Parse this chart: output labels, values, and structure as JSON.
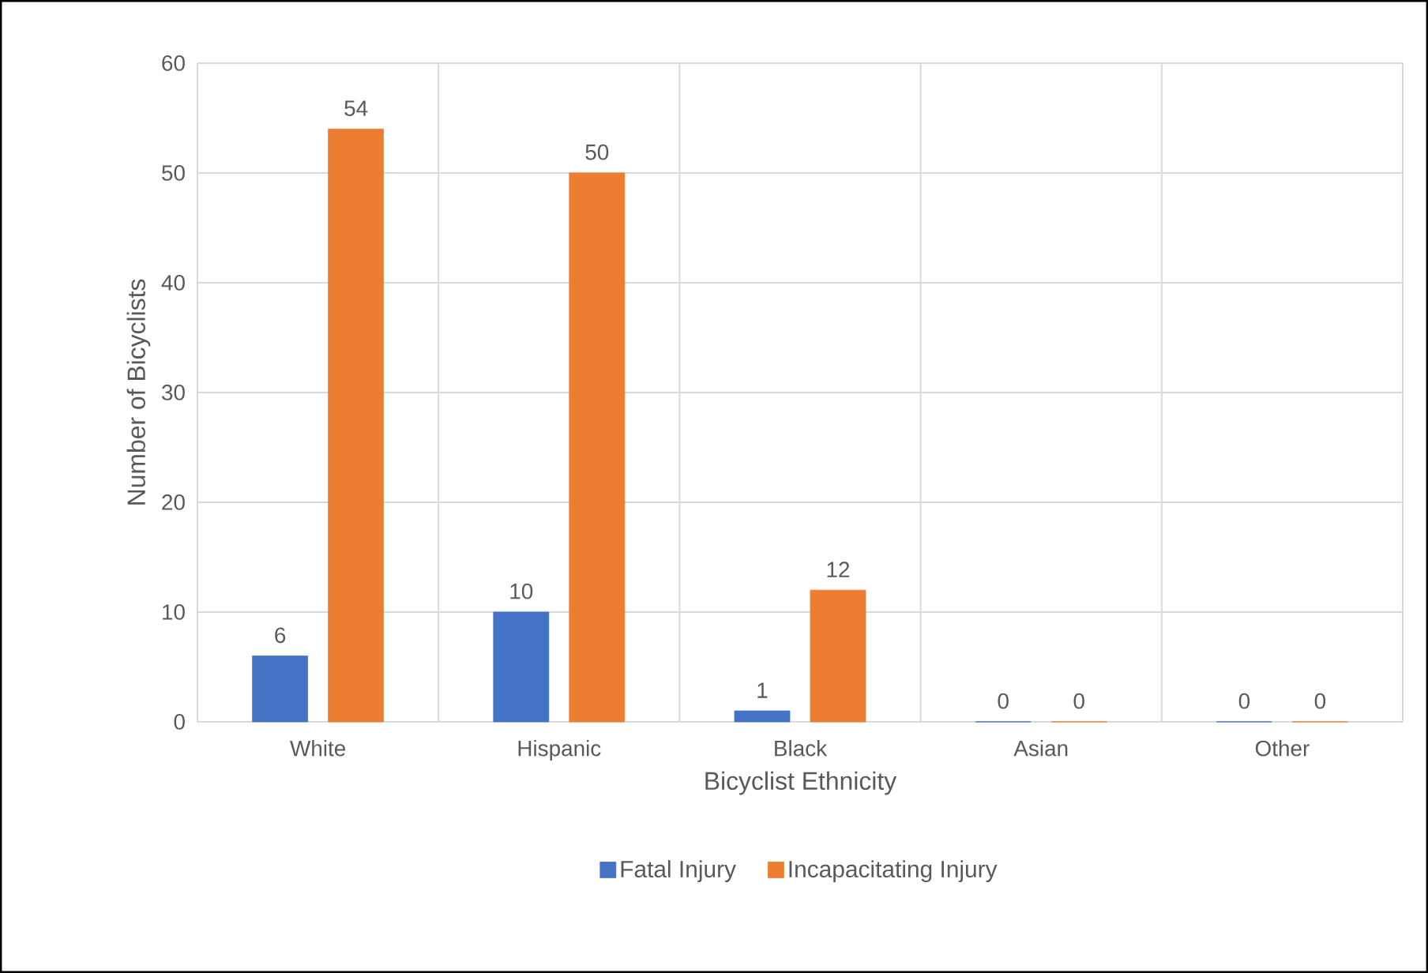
{
  "chart_data": {
    "type": "bar",
    "xlabel": "Bicyclist Ethnicity",
    "ylabel": "Number of Bicyclists",
    "categories": [
      "White",
      "Hispanic",
      "Black",
      "Asian",
      "Other"
    ],
    "series": [
      {
        "name": "Fatal Injury",
        "color": "#4472c4",
        "values": [
          6,
          10,
          1,
          0,
          0
        ]
      },
      {
        "name": "Incapacitating Injury",
        "color": "#ed7d31",
        "values": [
          54,
          50,
          12,
          0,
          0
        ]
      }
    ],
    "ylim": [
      0,
      60
    ],
    "yticks": [
      0,
      10,
      20,
      30,
      40,
      50,
      60
    ],
    "grid": true,
    "legend": "bottom",
    "data_labels": true
  }
}
